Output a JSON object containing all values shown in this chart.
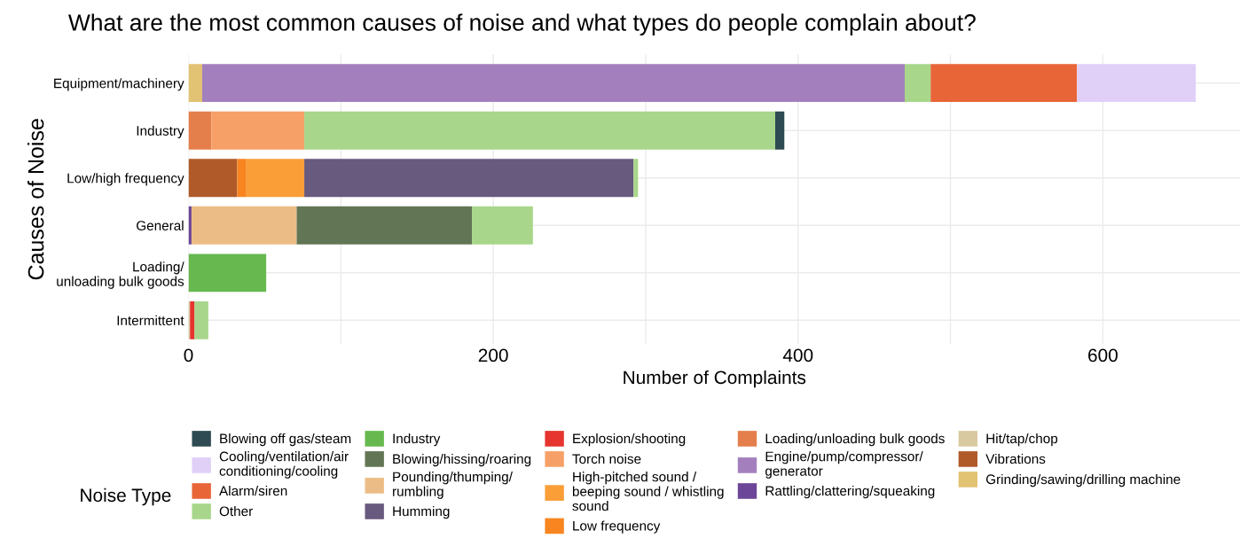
{
  "chart_data": {
    "type": "bar",
    "orientation": "horizontal",
    "stacked": true,
    "title": "What are the most common causes of noise and what types do people complain about?",
    "xlabel": "Number of Complaints",
    "ylabel": "Causes of Noise",
    "legend_title": "Noise Type",
    "legend": "bottom",
    "grid": true,
    "categories": [
      "Equipment/machinery",
      "Industry",
      "Low/high frequency",
      "General",
      "Loading/\nunloading bulk goods",
      "Intermittent"
    ],
    "xlim": [
      0,
      690
    ],
    "xticks": [
      0,
      {
        "value": 100,
        "label": null
      },
      200,
      {
        "value": 300,
        "label": null
      },
      400,
      {
        "value": 500,
        "label": null
      },
      600
    ],
    "series": [
      {
        "name": "Grinding/sawing/drilling machine",
        "color": "#e2c273",
        "values": [
          9,
          null,
          null,
          null,
          null,
          null
        ]
      },
      {
        "name": "Vibrations",
        "color": "#b05a2a",
        "values": [
          null,
          null,
          32,
          null,
          null,
          null
        ]
      },
      {
        "name": "Hit/tap/chop",
        "color": "#d9c9a0",
        "values": [
          null,
          null,
          null,
          null,
          null,
          1
        ]
      },
      {
        "name": "Rattling/clattering/squeaking",
        "color": "#6c4698",
        "values": [
          null,
          null,
          null,
          2,
          null,
          null
        ]
      },
      {
        "name": "Engine/pump/compressor/\ngenerator",
        "color": "#a380bd",
        "values": [
          461,
          null,
          null,
          null,
          null,
          null
        ]
      },
      {
        "name": "Loading/unloading bulk goods",
        "color": "#e47f4b",
        "values": [
          null,
          15,
          null,
          null,
          null,
          null
        ]
      },
      {
        "name": "Low frequency",
        "color": "#f88520",
        "values": [
          null,
          null,
          6,
          null,
          null,
          null
        ]
      },
      {
        "name": "High-pitched sound /\nbeeping sound / whistling\nsound",
        "color": "#fa9e38",
        "values": [
          null,
          null,
          38,
          null,
          null,
          null
        ]
      },
      {
        "name": "Torch noise",
        "color": "#f6a067",
        "values": [
          null,
          61,
          null,
          null,
          null,
          null
        ]
      },
      {
        "name": "Explosion/shooting",
        "color": "#e5352e",
        "values": [
          null,
          null,
          null,
          null,
          null,
          3
        ]
      },
      {
        "name": "Humming",
        "color": "#68597e",
        "values": [
          null,
          null,
          216,
          null,
          null,
          null
        ]
      },
      {
        "name": "Pounding/thumping/\nrumbling",
        "color": "#ecbc86",
        "values": [
          null,
          null,
          null,
          69,
          null,
          null
        ]
      },
      {
        "name": "Blowing/hissing/roaring",
        "color": "#627554",
        "values": [
          null,
          null,
          null,
          115,
          null,
          null
        ]
      },
      {
        "name": "Industry",
        "color": "#67b94f",
        "values": [
          null,
          null,
          null,
          null,
          51,
          null
        ]
      },
      {
        "name": "Other",
        "color": "#a8d68a",
        "values": [
          17,
          309,
          3,
          40,
          null,
          9
        ]
      },
      {
        "name": "Alarm/siren",
        "color": "#e86538",
        "values": [
          96,
          null,
          null,
          null,
          null,
          null
        ]
      },
      {
        "name": "Cooling/ventilation/air\nconditioning/cooling",
        "color": "#e0d0f8",
        "values": [
          78,
          null,
          null,
          null,
          null,
          null
        ]
      },
      {
        "name": "Blowing off gas/steam",
        "color": "#2e4a52",
        "values": [
          null,
          6,
          null,
          null,
          null,
          null
        ]
      }
    ]
  }
}
